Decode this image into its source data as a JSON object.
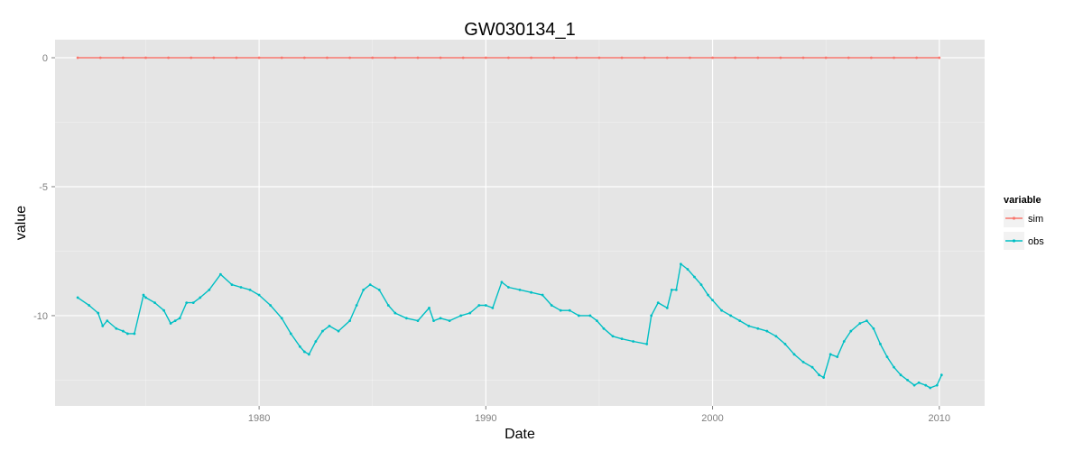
{
  "chart_data": {
    "type": "line",
    "title": "GW030134_1",
    "xlabel": "Date",
    "ylabel": "value",
    "xlim": [
      1971.0,
      2012.0
    ],
    "ylim": [
      -13.5,
      0.7
    ],
    "x_ticks": [
      1980,
      1990,
      2000,
      2010
    ],
    "y_ticks": [
      0,
      -5,
      -10
    ],
    "y_tick_labels": [
      "0",
      "-5",
      "-10"
    ],
    "grid": true,
    "legend_position": "right",
    "legend_title": "variable",
    "colors": {
      "sim": "#f8766d",
      "obs": "#00bfc4",
      "panel": "#e5e5e5",
      "grid": "#ffffff"
    },
    "series": [
      {
        "name": "sim",
        "x": [
          1972.0,
          1973.0,
          1974.0,
          1975.0,
          1976.0,
          1977.0,
          1978.0,
          1979.0,
          1980.0,
          1981.0,
          1982.0,
          1983.0,
          1984.0,
          1985.0,
          1986.0,
          1987.0,
          1988.0,
          1989.0,
          1990.0,
          1991.0,
          1992.0,
          1993.0,
          1994.0,
          1995.0,
          1996.0,
          1997.0,
          1998.0,
          1999.0,
          2000.0,
          2001.0,
          2002.0,
          2003.0,
          2004.0,
          2005.0,
          2006.0,
          2007.0,
          2008.0,
          2009.0,
          2010.0
        ],
        "y": [
          0,
          0,
          0,
          0,
          0,
          0,
          0,
          0,
          0,
          0,
          0,
          0,
          0,
          0,
          0,
          0,
          0,
          0,
          0,
          0,
          0,
          0,
          0,
          0,
          0,
          0,
          0,
          0,
          0,
          0,
          0,
          0,
          0,
          0,
          0,
          0,
          0,
          0,
          0
        ]
      },
      {
        "name": "obs",
        "x": [
          1972.0,
          1972.5,
          1972.9,
          1973.1,
          1973.3,
          1973.7,
          1974.0,
          1974.2,
          1974.5,
          1974.9,
          1975.0,
          1975.4,
          1975.8,
          1976.1,
          1976.3,
          1976.5,
          1976.8,
          1977.1,
          1977.4,
          1977.8,
          1978.3,
          1978.8,
          1979.2,
          1979.6,
          1980.0,
          1980.5,
          1981.0,
          1981.4,
          1981.8,
          1982.0,
          1982.2,
          1982.5,
          1982.8,
          1983.1,
          1983.5,
          1984.0,
          1984.3,
          1984.6,
          1984.9,
          1985.3,
          1985.7,
          1986.0,
          1986.5,
          1987.0,
          1987.5,
          1987.7,
          1988.0,
          1988.4,
          1988.9,
          1989.3,
          1989.7,
          1990.0,
          1990.3,
          1990.7,
          1991.0,
          1991.5,
          1992.0,
          1992.5,
          1992.9,
          1993.3,
          1993.7,
          1994.1,
          1994.6,
          1994.9,
          1995.2,
          1995.6,
          1996.0,
          1996.5,
          1997.1,
          1997.3,
          1997.6,
          1998.0,
          1998.2,
          1998.4,
          1998.6,
          1998.9,
          1999.2,
          1999.5,
          1999.8,
          2000.0,
          2000.4,
          2000.8,
          2001.2,
          2001.6,
          2002.0,
          2002.4,
          2002.8,
          2003.2,
          2003.6,
          2004.0,
          2004.4,
          2004.7,
          2004.9,
          2005.2,
          2005.5,
          2005.8,
          2006.1,
          2006.5,
          2006.8,
          2007.1,
          2007.4,
          2007.7,
          2008.0,
          2008.3,
          2008.6,
          2008.9,
          2009.1,
          2009.4,
          2009.6,
          2009.9,
          2010.1
        ],
        "y": [
          -9.3,
          -9.6,
          -9.9,
          -10.4,
          -10.2,
          -10.5,
          -10.6,
          -10.7,
          -10.7,
          -9.2,
          -9.3,
          -9.5,
          -9.8,
          -10.3,
          -10.2,
          -10.1,
          -9.5,
          -9.5,
          -9.3,
          -9.0,
          -8.4,
          -8.8,
          -8.9,
          -9.0,
          -9.2,
          -9.6,
          -10.1,
          -10.7,
          -11.2,
          -11.4,
          -11.5,
          -11.0,
          -10.6,
          -10.4,
          -10.6,
          -10.2,
          -9.6,
          -9.0,
          -8.8,
          -9.0,
          -9.6,
          -9.9,
          -10.1,
          -10.2,
          -9.7,
          -10.2,
          -10.1,
          -10.2,
          -10.0,
          -9.9,
          -9.6,
          -9.6,
          -9.7,
          -8.7,
          -8.9,
          -9.0,
          -9.1,
          -9.2,
          -9.6,
          -9.8,
          -9.8,
          -10.0,
          -10.0,
          -10.2,
          -10.5,
          -10.8,
          -10.9,
          -11.0,
          -11.1,
          -10.0,
          -9.5,
          -9.7,
          -9.0,
          -9.0,
          -8.0,
          -8.2,
          -8.5,
          -8.8,
          -9.2,
          -9.4,
          -9.8,
          -10.0,
          -10.2,
          -10.4,
          -10.5,
          -10.6,
          -10.8,
          -11.1,
          -11.5,
          -11.8,
          -12.0,
          -12.3,
          -12.4,
          -11.5,
          -11.6,
          -11.0,
          -10.6,
          -10.3,
          -10.2,
          -10.5,
          -11.1,
          -11.6,
          -12.0,
          -12.3,
          -12.5,
          -12.7,
          -12.6,
          -12.7,
          -12.8,
          -12.7,
          -12.3
        ]
      }
    ]
  }
}
